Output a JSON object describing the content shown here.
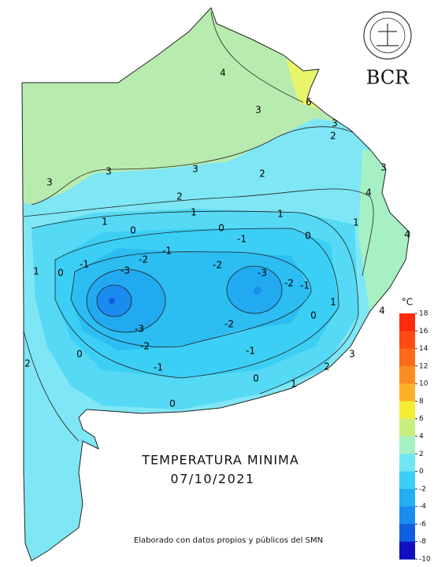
{
  "map": {
    "title": "TEMPERATURA MINIMA",
    "date": "07/10/2021",
    "credit": "Elaborado con datos propios y públicos del SMN",
    "logo_text": "BCR",
    "contour_labels": [
      4,
      6,
      3,
      3,
      2,
      3,
      4,
      3,
      3,
      3,
      2,
      2,
      1,
      1,
      1,
      1,
      4,
      0,
      0,
      0,
      -1,
      -1,
      -1,
      -2,
      -2,
      1,
      0,
      -3,
      -3,
      -2,
      -1,
      -3,
      -2,
      0,
      1,
      4,
      -2,
      -1,
      0,
      -1,
      3,
      2,
      2,
      0,
      1,
      0
    ],
    "colorbar": {
      "unit": "°C",
      "ticks": [
        18,
        16,
        14,
        12,
        10,
        8,
        6,
        4,
        2,
        0,
        -2,
        -4,
        -6,
        -8,
        -10
      ],
      "colors": [
        "#ff2a0c",
        "#ff4a12",
        "#ff6a18",
        "#ff8c20",
        "#ffb024",
        "#f4ee34",
        "#c8ee80",
        "#a6f0c4",
        "#70e6f2",
        "#3ccff5",
        "#22b0f2",
        "#1a8cf0",
        "#125ee0",
        "#1010c0"
      ]
    }
  }
}
